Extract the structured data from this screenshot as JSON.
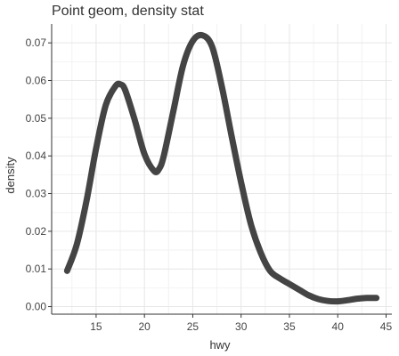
{
  "chart_data": {
    "type": "line",
    "title": "Point geom, density stat",
    "xlabel": "hwy",
    "ylabel": "density",
    "xlim": [
      10.4,
      45.6
    ],
    "ylim": [
      -0.002,
      0.075
    ],
    "x_ticks": [
      15,
      20,
      25,
      30,
      35,
      40,
      45
    ],
    "y_ticks": [
      0.0,
      0.01,
      0.02,
      0.03,
      0.04,
      0.05,
      0.06,
      0.07
    ],
    "y_tick_labels": [
      "0.00",
      "0.01",
      "0.02",
      "0.03",
      "0.04",
      "0.05",
      "0.06",
      "0.07"
    ],
    "grid": true,
    "series": [
      {
        "color": "#444444",
        "x": [
          12,
          13,
          14,
          15,
          16,
          17,
          17.5,
          18,
          19,
          20,
          21,
          21.5,
          22,
          23,
          24,
          25,
          26,
          27,
          28,
          29,
          30,
          31,
          32,
          33,
          34,
          35,
          36,
          37,
          38,
          39,
          40,
          41,
          42,
          43,
          44
        ],
        "y": [
          0.0095,
          0.0165,
          0.028,
          0.042,
          0.0535,
          0.0585,
          0.059,
          0.0575,
          0.0495,
          0.0405,
          0.036,
          0.0365,
          0.04,
          0.052,
          0.064,
          0.0705,
          0.072,
          0.069,
          0.0585,
          0.0455,
          0.033,
          0.022,
          0.0145,
          0.0095,
          0.0075,
          0.006,
          0.0045,
          0.003,
          0.002,
          0.0015,
          0.0014,
          0.0017,
          0.0021,
          0.0023,
          0.0023
        ]
      }
    ]
  }
}
